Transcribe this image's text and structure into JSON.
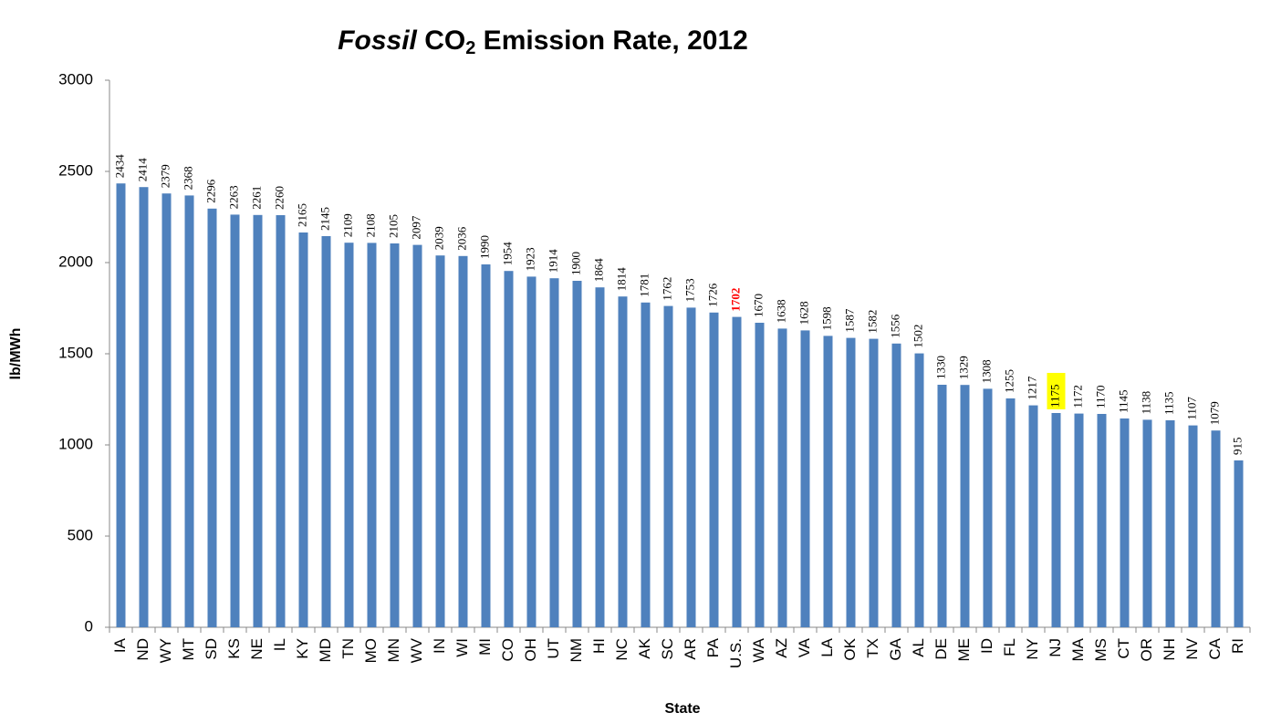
{
  "chart_data": {
    "type": "bar",
    "title_segments": [
      {
        "text": "Fossil",
        "style": "italic"
      },
      {
        "text": " CO",
        "style": "normal"
      },
      {
        "text": "2",
        "style": "sub"
      },
      {
        "text": " Emission Rate, 2012",
        "style": "normal"
      }
    ],
    "x_label": "State",
    "y_label": "lb/MWh",
    "categories": [
      "IA",
      "ND",
      "WY",
      "MT",
      "SD",
      "KS",
      "NE",
      "IL",
      "KY",
      "MD",
      "TN",
      "MO",
      "MN",
      "WV",
      "IN",
      "WI",
      "MI",
      "CO",
      "OH",
      "UT",
      "NM",
      "HI",
      "NC",
      "AK",
      "SC",
      "AR",
      "PA",
      "U.S.",
      "WA",
      "AZ",
      "VA",
      "LA",
      "OK",
      "TX",
      "GA",
      "AL",
      "DE",
      "ME",
      "ID",
      "FL",
      "NY",
      "NJ",
      "MA",
      "MS",
      "CT",
      "OR",
      "NH",
      "NV",
      "CA",
      "RI"
    ],
    "values": [
      2434,
      2414,
      2379,
      2368,
      2296,
      2263,
      2261,
      2260,
      2165,
      2145,
      2109,
      2108,
      2105,
      2097,
      2039,
      2036,
      1990,
      1954,
      1923,
      1914,
      1900,
      1864,
      1814,
      1781,
      1762,
      1753,
      1726,
      1702,
      1670,
      1638,
      1628,
      1598,
      1587,
      1582,
      1556,
      1502,
      1330,
      1329,
      1308,
      1255,
      1217,
      1175,
      1172,
      1170,
      1145,
      1138,
      1135,
      1107,
      1079,
      915
    ],
    "color": "#4f81bd",
    "emphasis": [
      {
        "index": 27,
        "label_color": "#ff0000",
        "bold": true
      },
      {
        "index": 41,
        "label_background": "#ffff00"
      }
    ],
    "ylim": [
      0,
      3000
    ],
    "yticks": [
      0,
      500,
      1000,
      1500,
      2000,
      2500,
      3000
    ],
    "grid": false
  }
}
